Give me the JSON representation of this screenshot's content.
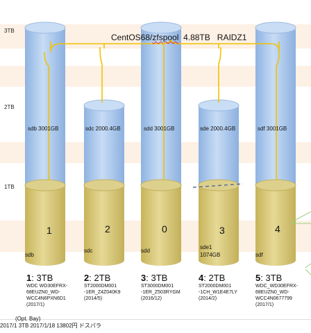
{
  "y_axis": {
    "labels": [
      "3TB",
      "2TB",
      "1TB"
    ]
  },
  "pool_title": {
    "prefix": "CentOS68/",
    "pool": "zfspool",
    "size": "4.88TB",
    "raid": "RAIDZ1"
  },
  "disks": [
    {
      "device_label": "sdb 3001GB",
      "partition_device": "sdb",
      "partition_number": "1",
      "slot": "1",
      "capacity": "3TB",
      "model": [
        "WDC WD30EFRX-",
        "68EUZN0_WD-",
        "WCC4N6PXN6D1",
        "(2017/1)"
      ]
    },
    {
      "device_label": "sdc 2000.4GB",
      "partition_device": "sdc",
      "partition_number": "2",
      "slot": "2",
      "capacity": "2TB",
      "model": [
        "ST2000DM001",
        "-1ER_Z4Z040K9",
        "(2014/5)"
      ]
    },
    {
      "device_label": "sdd 3001GB",
      "partition_device": "sdd",
      "partition_number": "0",
      "slot": "3",
      "capacity": "3TB",
      "model": [
        "ST3000DM001",
        "-1ER_Z503RYGM",
        "(2016/12)"
      ]
    },
    {
      "device_label": "sde 2000.4GB",
      "partition_device": "sde1",
      "partition_extra": "1074GB",
      "partition_number": "3",
      "slot": "4",
      "capacity": "2TB",
      "model": [
        "ST2000DM001",
        "-1CH_W1E4E7LY",
        "(2014/2)"
      ]
    },
    {
      "device_label": "sdf 3001GB",
      "partition_device": "sdf",
      "partition_number": "4",
      "slot": "5",
      "capacity": "3TB",
      "model": [
        "WDC_WD30EFRX-",
        "68EUZN0_WD-",
        "WCC4N0677799",
        "(2017/1)"
      ]
    }
  ],
  "footer": {
    "opt_bay": "(Opt. Bay)",
    "line": "2017/1  3TB  2017/1/18 13802円 ドスパラ"
  },
  "colors": {
    "blue": "#a9c8ec",
    "gold": "#d7c779",
    "line": "#f2c200",
    "band": "#fdf0e4"
  }
}
